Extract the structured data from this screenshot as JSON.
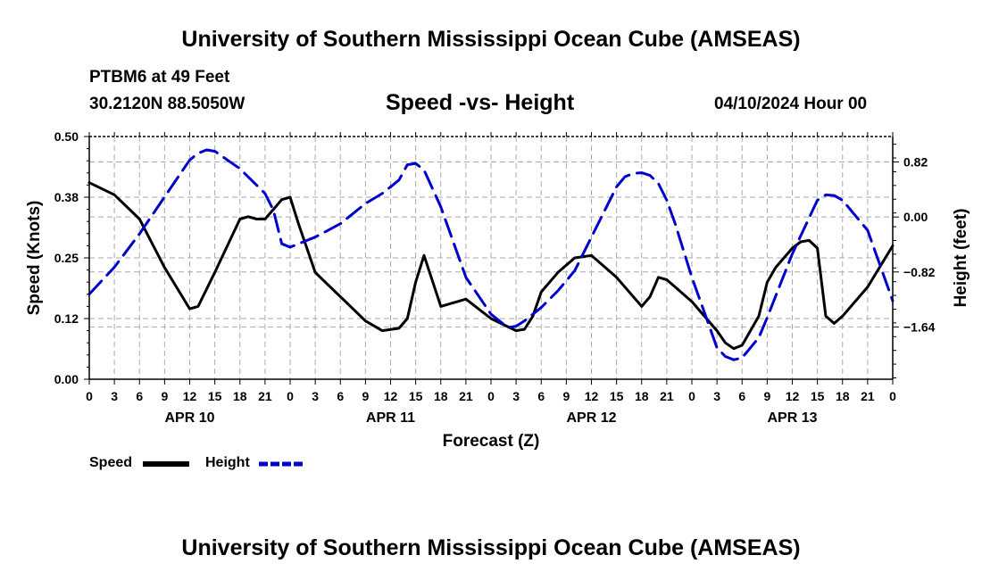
{
  "header": {
    "title": "University of Southern Mississippi Ocean Cube (AMSEAS)",
    "station": "PTBM6 at 49 Feet",
    "coords": "30.2120N  88.5050W",
    "subtitle": "Speed -vs- Height",
    "run_time": "04/10/2024 Hour 00"
  },
  "footer": {
    "title": "University of Southern Mississippi Ocean Cube (AMSEAS)"
  },
  "legend": [
    {
      "label": "Speed",
      "color": "#000000",
      "style": "solid"
    },
    {
      "label": "Height",
      "color": "#0000cc",
      "style": "dashed"
    }
  ],
  "chart_data": {
    "type": "line",
    "title": "Speed -vs- Height",
    "xlabel": "Forecast (Z)",
    "ylabel": "Speed (Knots)",
    "y2label": "Height (feet)",
    "xlim": [
      0,
      96
    ],
    "ylim": [
      0,
      0.5
    ],
    "y2lim": [
      -2.42,
      1.2
    ],
    "yticks": [
      "0.00",
      "0.12",
      "0.25",
      "0.38",
      "0.50"
    ],
    "ytick_values": [
      0,
      0.125,
      0.25,
      0.375,
      0.5
    ],
    "y2ticks": [
      "0.82",
      "0.00",
      "−0.82",
      "−1.64"
    ],
    "y2tick_values": [
      0.82,
      0,
      -0.82,
      -1.64
    ],
    "xtick_labels": [
      "0",
      "3",
      "6",
      "9",
      "12",
      "15",
      "18",
      "21",
      "0",
      "3",
      "6",
      "9",
      "12",
      "15",
      "18",
      "21",
      "0",
      "3",
      "6",
      "9",
      "12",
      "15",
      "18",
      "21",
      "0",
      "3",
      "6",
      "9",
      "12",
      "15",
      "18",
      "21",
      "0"
    ],
    "day_labels": [
      {
        "label": "APR 10",
        "hour": 12
      },
      {
        "label": "APR 11",
        "hour": 36
      },
      {
        "label": "APR 12",
        "hour": 60
      },
      {
        "label": "APR 13",
        "hour": 84
      }
    ],
    "grid": true,
    "series": [
      {
        "name": "Speed",
        "axis": "left",
        "color": "#000000",
        "dash": "solid",
        "x": [
          0,
          3,
          6,
          9,
          12,
          13,
          15,
          18,
          19,
          20,
          21,
          22,
          23,
          24,
          25,
          27,
          30,
          33,
          35,
          37,
          38,
          39,
          40,
          42,
          45,
          48,
          51,
          52,
          53,
          54,
          56,
          58,
          60,
          63,
          66,
          67,
          68,
          69,
          70,
          72,
          75,
          76,
          77,
          78,
          80,
          81,
          82,
          84,
          85,
          86,
          87,
          88,
          89,
          90,
          93,
          96
        ],
        "values": [
          0.405,
          0.38,
          0.33,
          0.23,
          0.145,
          0.15,
          0.22,
          0.33,
          0.335,
          0.33,
          0.33,
          0.35,
          0.37,
          0.375,
          0.32,
          0.22,
          0.17,
          0.12,
          0.1,
          0.105,
          0.125,
          0.2,
          0.255,
          0.15,
          0.165,
          0.125,
          0.1,
          0.103,
          0.13,
          0.18,
          0.22,
          0.25,
          0.255,
          0.21,
          0.15,
          0.17,
          0.21,
          0.205,
          0.19,
          0.16,
          0.1,
          0.075,
          0.063,
          0.07,
          0.13,
          0.2,
          0.23,
          0.27,
          0.283,
          0.286,
          0.27,
          0.13,
          0.115,
          0.13,
          0.19,
          0.275
        ]
      },
      {
        "name": "Height",
        "axis": "right",
        "color": "#0000cc",
        "dash": "dashed",
        "x": [
          0,
          3,
          6,
          9,
          12,
          13,
          14,
          15,
          18,
          21,
          22,
          23,
          24,
          27,
          30,
          33,
          35,
          36,
          37,
          38,
          39,
          40,
          42,
          45,
          48,
          50,
          51,
          52,
          54,
          56,
          58,
          60,
          63,
          64,
          65,
          66,
          67,
          68,
          69,
          70,
          72,
          74,
          75,
          76,
          77,
          78,
          80,
          81,
          84,
          87,
          88,
          89,
          90,
          93,
          96
        ],
        "values": [
          -1.15,
          -0.75,
          -0.25,
          0.3,
          0.85,
          0.95,
          1.0,
          0.98,
          0.72,
          0.35,
          0.1,
          -0.4,
          -0.45,
          -0.3,
          -0.1,
          0.2,
          0.35,
          0.45,
          0.55,
          0.78,
          0.8,
          0.7,
          0.15,
          -0.9,
          -1.45,
          -1.65,
          -1.63,
          -1.55,
          -1.35,
          -1.1,
          -0.8,
          -0.3,
          0.45,
          0.6,
          0.65,
          0.66,
          0.62,
          0.5,
          0.25,
          -0.1,
          -0.9,
          -1.6,
          -1.95,
          -2.08,
          -2.13,
          -2.1,
          -1.8,
          -1.5,
          -0.55,
          0.25,
          0.33,
          0.32,
          0.25,
          -0.2,
          -1.25
        ]
      }
    ]
  }
}
